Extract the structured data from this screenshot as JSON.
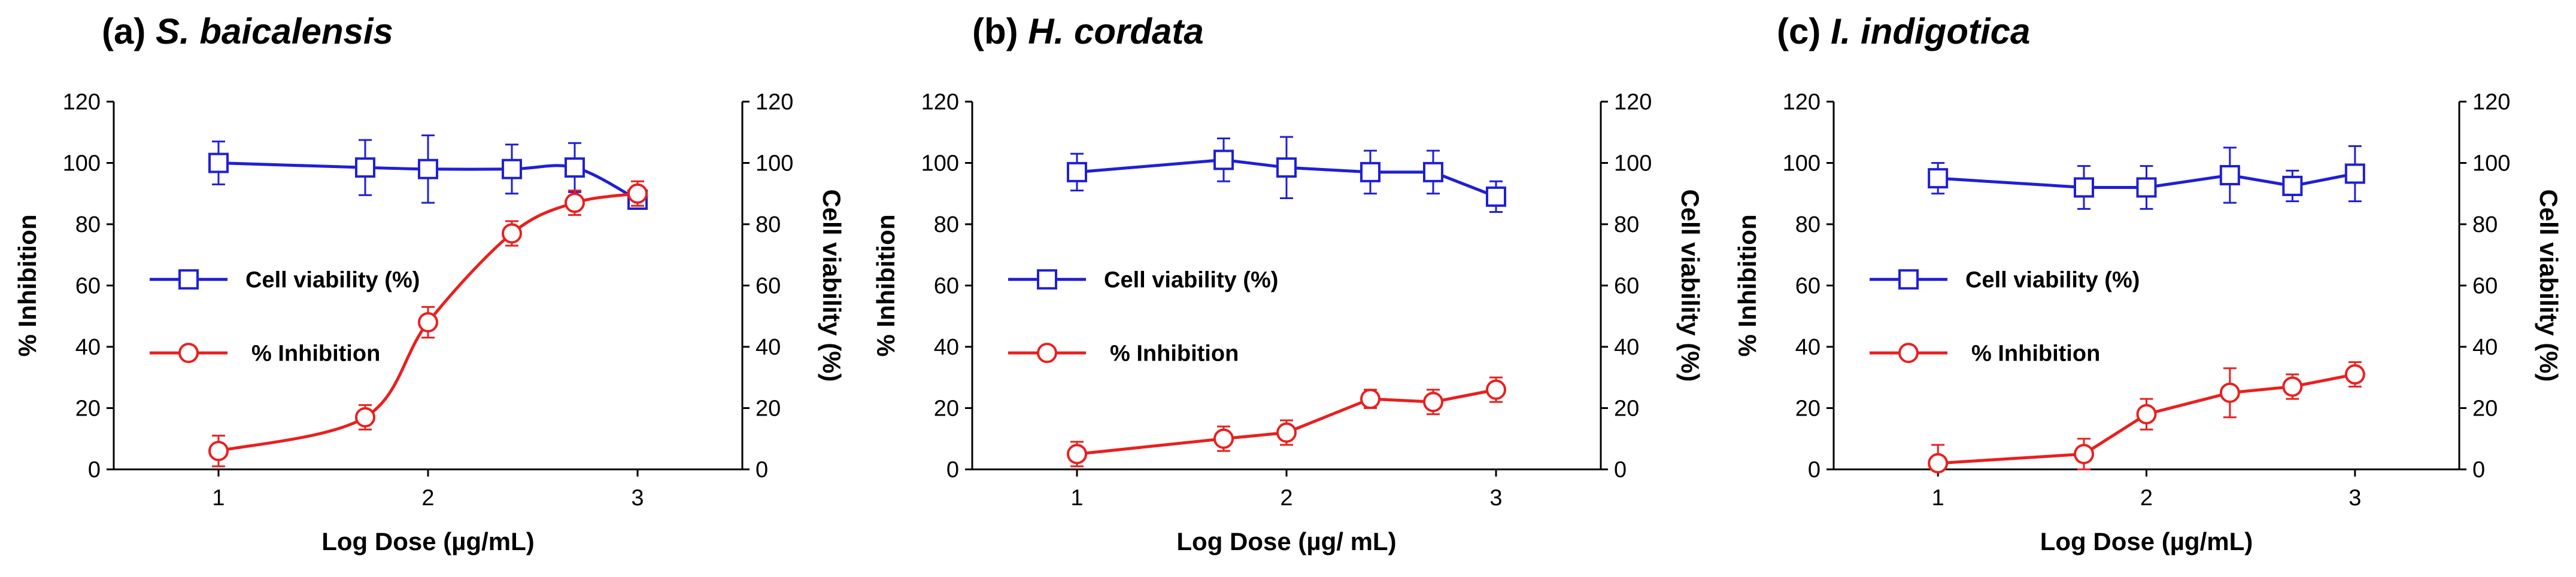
{
  "chart_data": [
    {
      "type": "line",
      "panel_label": "(a)",
      "title": "S. baicalensis",
      "xlabel": "Log Dose (µg/mL)",
      "ylabel_left": "% Inhibition",
      "ylabel_right": "Cell viability (%)",
      "xlim": [
        0.5,
        3.5
      ],
      "ylim": [
        0,
        120
      ],
      "xticks": [
        "1",
        "2",
        "3"
      ],
      "yticks": [
        "0",
        "20",
        "40",
        "60",
        "80",
        "100",
        "120"
      ],
      "legend_position": "middle-left",
      "smooth": true,
      "series": [
        {
          "name": "Cell viability (%)",
          "color": "#1f1fd6",
          "marker": "square",
          "x": [
            1,
            1.7,
            2,
            2.4,
            2.7,
            3
          ],
          "y": [
            100,
            98.5,
            98,
            98,
            98.5,
            88
          ],
          "err": [
            7,
            9,
            11,
            8,
            8,
            3
          ]
        },
        {
          "name": "% Inhibition",
          "color": "#e8201f",
          "marker": "circle",
          "x": [
            1,
            1.7,
            2,
            2.4,
            2.7,
            3
          ],
          "y": [
            6,
            17,
            48,
            77,
            87,
            90
          ],
          "err": [
            5,
            4,
            5,
            4,
            4,
            4
          ]
        }
      ]
    },
    {
      "type": "line",
      "panel_label": "(b)",
      "title": "H. cordata",
      "xlabel": "Log Dose (µg/ mL)",
      "ylabel_left": "% Inhibition",
      "ylabel_right": "Cell viability (%)",
      "xlim": [
        0.5,
        3.5
      ],
      "ylim": [
        0,
        120
      ],
      "xticks": [
        "1",
        "2",
        "3"
      ],
      "yticks": [
        "0",
        "20",
        "40",
        "60",
        "80",
        "100",
        "120"
      ],
      "legend_position": "middle-left",
      "smooth": false,
      "series": [
        {
          "name": "Cell viability (%)",
          "color": "#1f1fd6",
          "marker": "square",
          "x": [
            1,
            1.7,
            2,
            2.4,
            2.7,
            3
          ],
          "y": [
            97,
            101,
            98.5,
            97,
            97,
            89
          ],
          "err": [
            6,
            7,
            10,
            7,
            7,
            5
          ]
        },
        {
          "name": "% Inhibition",
          "color": "#e8201f",
          "marker": "circle",
          "x": [
            1,
            1.7,
            2,
            2.4,
            2.7,
            3
          ],
          "y": [
            5,
            10,
            12,
            23,
            22,
            26
          ],
          "err": [
            4,
            4,
            4,
            3,
            4,
            4
          ]
        }
      ]
    },
    {
      "type": "line",
      "panel_label": "(c)",
      "title": "I. indigotica",
      "xlabel": "Log Dose (µg/mL)",
      "ylabel_left": "% Inhibition",
      "ylabel_right": "Cell viability (%)",
      "xlim": [
        0.5,
        3.5
      ],
      "ylim": [
        0,
        120
      ],
      "xticks": [
        "1",
        "2",
        "3"
      ],
      "yticks": [
        "0",
        "20",
        "40",
        "60",
        "80",
        "100",
        "120"
      ],
      "legend_position": "middle-left",
      "smooth": false,
      "series": [
        {
          "name": "Cell viability (%)",
          "color": "#1f1fd6",
          "marker": "square",
          "x": [
            1,
            1.7,
            2,
            2.4,
            2.7,
            3
          ],
          "y": [
            95,
            92,
            92,
            96,
            92.5,
            96.5
          ],
          "err": [
            5,
            7,
            7,
            9,
            5,
            9
          ]
        },
        {
          "name": "% Inhibition",
          "color": "#e8201f",
          "marker": "circle",
          "x": [
            1,
            1.7,
            2,
            2.4,
            2.7,
            3
          ],
          "y": [
            2,
            5,
            18,
            25,
            27,
            31
          ],
          "err": [
            6,
            5,
            5,
            8,
            4,
            4
          ]
        }
      ]
    }
  ]
}
